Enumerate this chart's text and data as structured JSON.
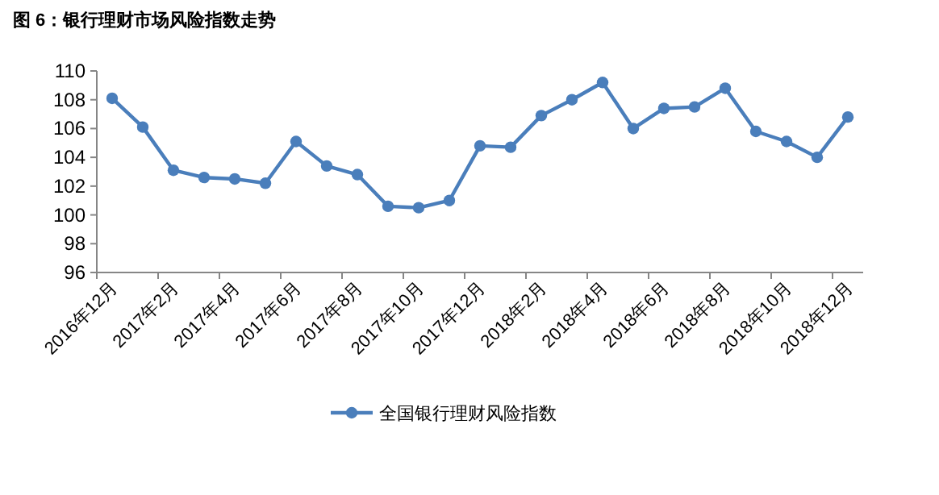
{
  "chart_data": {
    "type": "line",
    "title": "图 6：银行理财市场风险指数走势",
    "categories": [
      "2016年12月",
      null,
      "2017年2月",
      null,
      "2017年4月",
      null,
      "2017年6月",
      null,
      "2017年8月",
      null,
      "2017年10月",
      null,
      "2017年12月",
      null,
      "2018年2月",
      null,
      "2018年4月",
      null,
      "2018年6月",
      null,
      "2018年8月",
      null,
      "2018年10月",
      null,
      "2018年12月"
    ],
    "series": [
      {
        "name": "全国银行理财风险指数",
        "color": "#4a7ebb",
        "values": [
          108.1,
          106.1,
          103.1,
          102.6,
          102.5,
          102.2,
          105.1,
          103.4,
          102.8,
          100.6,
          100.5,
          101.0,
          104.8,
          104.7,
          106.9,
          108.0,
          109.2,
          106.0,
          107.4,
          107.5,
          108.8,
          105.8,
          105.1,
          104.0,
          106.8
        ]
      }
    ],
    "ylim": [
      96,
      110
    ],
    "yticks": [
      96,
      98,
      100,
      102,
      104,
      106,
      108,
      110
    ],
    "marker": "circle",
    "line_style": "solid",
    "legend": "bottom",
    "grid": false
  }
}
